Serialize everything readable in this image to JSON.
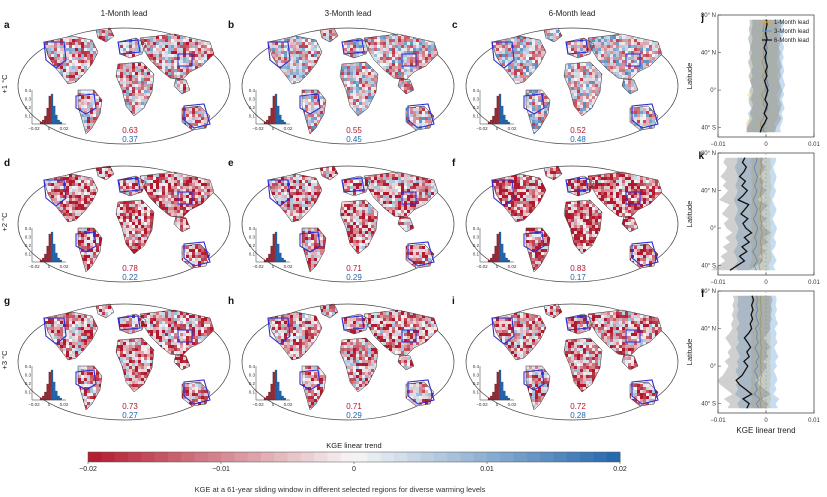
{
  "figure": {
    "column_titles": [
      "1-Month lead",
      "3-Month lead",
      "6-Month lead"
    ],
    "row_labels": [
      "+1 °C",
      "+2 °C",
      "+3 °C"
    ],
    "caption": "KGE at a 61-year sliding window in different selected regions for diverse warming levels",
    "colorbar": {
      "title": "KGE linear trend",
      "ticks": [
        "−0.02",
        "−0.01",
        "0",
        "0.01",
        "0.02"
      ]
    },
    "inset_hist_ticks_y": [
      "0.4",
      "0.3",
      "0.2",
      "0.1"
    ],
    "inset_hist_ticks_x": [
      "−0.02",
      "0",
      "0.02"
    ]
  },
  "colors": {
    "negative_trend": "#b2182b",
    "positive_trend": "#2166ac",
    "region_box": "#2b2bd6",
    "lead_1": "#f5a623",
    "lead_3": "#5b9bd5",
    "lead_6": "#111111"
  },
  "chart_data": [
    {
      "panel": "a",
      "type": "map",
      "row": 0,
      "col": 0,
      "neg_fraction": "0.63",
      "pos_fraction": "0.37"
    },
    {
      "panel": "b",
      "type": "map",
      "row": 0,
      "col": 1,
      "neg_fraction": "0.55",
      "pos_fraction": "0.45"
    },
    {
      "panel": "c",
      "type": "map",
      "row": 0,
      "col": 2,
      "neg_fraction": "0.52",
      "pos_fraction": "0.48"
    },
    {
      "panel": "d",
      "type": "map",
      "row": 1,
      "col": 0,
      "neg_fraction": "0.78",
      "pos_fraction": "0.22"
    },
    {
      "panel": "e",
      "type": "map",
      "row": 1,
      "col": 1,
      "neg_fraction": "0.71",
      "pos_fraction": "0.29"
    },
    {
      "panel": "f",
      "type": "map",
      "row": 1,
      "col": 2,
      "neg_fraction": "0.83",
      "pos_fraction": "0.17"
    },
    {
      "panel": "g",
      "type": "map",
      "row": 2,
      "col": 0,
      "neg_fraction": "0.73",
      "pos_fraction": "0.27"
    },
    {
      "panel": "h",
      "type": "map",
      "row": 2,
      "col": 1,
      "neg_fraction": "0.71",
      "pos_fraction": "0.29"
    },
    {
      "panel": "i",
      "type": "map",
      "row": 2,
      "col": 2,
      "neg_fraction": "0.72",
      "pos_fraction": "0.28"
    },
    {
      "panel": "j",
      "type": "line",
      "row": 0,
      "xlabel": "",
      "ylabel": "Latitude",
      "xlim": [
        -0.01,
        0.01
      ],
      "ylim": [
        -50,
        80
      ],
      "xticks": [
        "−0.01",
        "0",
        "0.01"
      ],
      "yticks": [
        {
          "v": 80,
          "t": "80° N"
        },
        {
          "v": 40,
          "t": "40° N"
        },
        {
          "v": 0,
          "t": "0°"
        },
        {
          "v": -40,
          "t": "40° S"
        }
      ],
      "legend": {
        "placement": "top-right",
        "entries": [
          "1-Month lead",
          "3-Month lead",
          "6-Month lead"
        ]
      },
      "lat": [
        -45,
        -40,
        -35,
        -30,
        -25,
        -20,
        -15,
        -10,
        -5,
        0,
        5,
        10,
        15,
        20,
        25,
        30,
        35,
        40,
        45,
        50,
        55,
        60,
        65,
        70,
        75
      ],
      "series": [
        {
          "name": "1-Month lead",
          "values": [
            -0.0008,
            -0.001,
            -0.0012,
            -0.0005,
            -0.0003,
            0.0002,
            -0.0006,
            -0.0004,
            -0.0009,
            -0.0003,
            0.0,
            -0.0004,
            -0.0007,
            -0.0002,
            -0.0005,
            -0.0008,
            -0.0004,
            -0.0006,
            -0.0002,
            -0.0005,
            -0.0008,
            -0.0003,
            -0.0006,
            -0.0004,
            -0.0002
          ],
          "band": 0.003
        },
        {
          "name": "3-Month lead",
          "values": [
            -0.0004,
            -0.0006,
            -0.0002,
            0.0001,
            -0.0003,
            0.0004,
            0.0001,
            -0.0002,
            0.0003,
            0.0,
            0.0005,
            0.0002,
            -0.0001,
            0.0003,
            0.0001,
            -0.0002,
            0.0002,
            -0.0001,
            0.0003,
            0.0,
            -0.0002,
            0.0001,
            -0.0001,
            0.0002,
            0.0
          ],
          "band": 0.0035
        },
        {
          "name": "6-Month lead",
          "values": [
            -0.0012,
            -0.0009,
            -0.0003,
            0.0002,
            -0.0004,
            0.0,
            0.0003,
            -0.0002,
            0.0001,
            0.0004,
            0.0,
            -0.0003,
            0.0002,
            -0.0001,
            0.0003,
            0.0,
            -0.0002,
            0.0001,
            -0.0004,
            0.0,
            0.0002,
            -0.0001,
            0.0,
            0.0002,
            0.0001
          ],
          "band": 0.003
        }
      ]
    },
    {
      "panel": "k",
      "type": "line",
      "row": 1,
      "xlabel": "",
      "ylabel": "Latitude",
      "xlim": [
        -0.01,
        0.01
      ],
      "ylim": [
        -50,
        80
      ],
      "xticks": [
        "−0.01",
        "0",
        "0.01"
      ],
      "yticks": [
        {
          "v": 80,
          "t": "80° N"
        },
        {
          "v": 40,
          "t": "40° N"
        },
        {
          "v": 0,
          "t": "0°"
        },
        {
          "v": -40,
          "t": "40° S"
        }
      ],
      "lat": [
        -45,
        -40,
        -35,
        -30,
        -25,
        -20,
        -15,
        -10,
        -5,
        0,
        5,
        10,
        15,
        20,
        25,
        30,
        35,
        40,
        45,
        50,
        55,
        60,
        65,
        70,
        75
      ],
      "series": [
        {
          "name": "1-Month lead",
          "values": [
            -0.0012,
            -0.0015,
            -0.001,
            -0.0008,
            -0.0011,
            -0.0009,
            -0.0012,
            -0.001,
            -0.0008,
            -0.0011,
            -0.0009,
            -0.0012,
            -0.001,
            -0.0013,
            -0.0011,
            -0.0009,
            -0.0012,
            -0.001,
            -0.0008,
            -0.0011,
            -0.001,
            -0.0012,
            -0.0009,
            -0.0011,
            -0.001
          ],
          "band": 0.002
        },
        {
          "name": "3-Month lead",
          "values": [
            -0.002,
            -0.0025,
            -0.0018,
            -0.0022,
            -0.0028,
            -0.0021,
            -0.0019,
            -0.0024,
            -0.002,
            -0.0017,
            -0.0022,
            -0.0026,
            -0.0021,
            -0.0018,
            -0.0023,
            -0.0027,
            -0.0022,
            -0.0019,
            -0.0024,
            -0.002,
            -0.0018,
            -0.0022,
            -0.0025,
            -0.002,
            -0.0019
          ],
          "band": 0.004
        },
        {
          "name": "6-Month lead",
          "values": [
            -0.0075,
            -0.006,
            -0.0045,
            -0.0055,
            -0.004,
            -0.005,
            -0.0035,
            -0.0045,
            -0.003,
            -0.0042,
            -0.0048,
            -0.0038,
            -0.0052,
            -0.0044,
            -0.0036,
            -0.0058,
            -0.0047,
            -0.0039,
            -0.005,
            -0.0043,
            -0.0055,
            -0.0046,
            -0.0041,
            -0.0049,
            -0.0044
          ],
          "band": 0.004
        }
      ]
    },
    {
      "panel": "l",
      "type": "line",
      "row": 2,
      "xlabel": "KGE linear trend",
      "ylabel": "Latitude",
      "xlim": [
        -0.01,
        0.01
      ],
      "ylim": [
        -50,
        80
      ],
      "xticks": [
        "−0.01",
        "0",
        "0.01"
      ],
      "yticks": [
        {
          "v": 80,
          "t": "80° N"
        },
        {
          "v": 40,
          "t": "40° N"
        },
        {
          "v": 0,
          "t": "0°"
        },
        {
          "v": -40,
          "t": "40° S"
        }
      ],
      "lat": [
        -45,
        -40,
        -35,
        -30,
        -25,
        -20,
        -15,
        -10,
        -5,
        0,
        5,
        10,
        15,
        20,
        25,
        30,
        35,
        40,
        45,
        50,
        55,
        60,
        65,
        70,
        75
      ],
      "series": [
        {
          "name": "1-Month lead",
          "values": [
            -0.001,
            -0.0012,
            -0.0009,
            -0.0011,
            -0.0013,
            -0.001,
            -0.0012,
            -0.0009,
            -0.0011,
            -0.001,
            -0.0012,
            -0.001,
            -0.0011,
            -0.0009,
            -0.0012,
            -0.001,
            -0.0011,
            -0.0013,
            -0.001,
            -0.0012,
            -0.0009,
            -0.0011,
            -0.001,
            -0.0012,
            -0.0011
          ],
          "band": 0.002
        },
        {
          "name": "3-Month lead",
          "values": [
            -0.0015,
            -0.002,
            -0.0012,
            -0.0025,
            -0.0018,
            -0.0022,
            -0.0016,
            -0.0019,
            -0.0024,
            -0.0017,
            -0.0021,
            -0.0014,
            -0.0019,
            -0.0023,
            -0.0016,
            -0.002,
            -0.0018,
            -0.0022,
            -0.0015,
            -0.0019,
            -0.0021,
            -0.0017,
            -0.002,
            -0.0018,
            -0.0019
          ],
          "band": 0.004
        },
        {
          "name": "6-Month lead",
          "values": [
            -0.004,
            -0.0035,
            -0.0048,
            -0.003,
            -0.0042,
            -0.0055,
            -0.0062,
            -0.005,
            -0.0044,
            -0.0038,
            -0.0046,
            -0.0035,
            -0.004,
            -0.0032,
            -0.0038,
            -0.0045,
            -0.0036,
            -0.003,
            -0.0033,
            -0.0028,
            -0.0031,
            -0.0027,
            -0.003,
            -0.0026,
            -0.0029
          ],
          "band": 0.004
        }
      ]
    }
  ]
}
